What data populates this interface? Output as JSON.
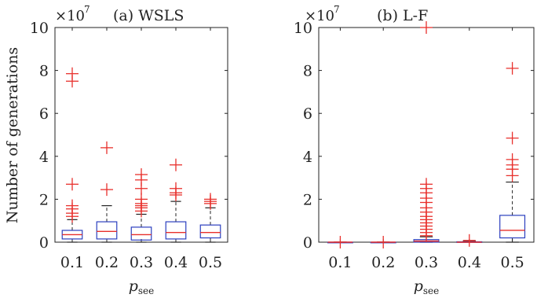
{
  "figure": {
    "ylabel": "Number of generations",
    "xlabel_main": "p",
    "xlabel_sub": "see",
    "multiplier_base": "×10",
    "multiplier_exp": "7"
  },
  "chart_data": [
    {
      "type": "box",
      "title": "(a) WSLS",
      "categories": [
        "0.1",
        "0.2",
        "0.3",
        "0.4",
        "0.5"
      ],
      "ylim": [
        0,
        10
      ],
      "yticks": [
        "0",
        "2",
        "4",
        "6",
        "8",
        "10"
      ],
      "y_unit_multiplier": 10000000,
      "box_color": "#2b3fbf",
      "median_color": "#e8302c",
      "outlier_color": "#e8302c",
      "boxes": [
        {
          "whisker_low": 0,
          "q1": 0.15,
          "median": 0.35,
          "q3": 0.55,
          "whisker_high": 1.05,
          "outliers": [
            1.2,
            1.35,
            1.55,
            1.7,
            2.7,
            7.5,
            7.85
          ]
        },
        {
          "whisker_low": 0,
          "q1": 0.15,
          "median": 0.5,
          "q3": 0.95,
          "whisker_high": 1.7,
          "outliers": [
            2.45,
            4.4
          ]
        },
        {
          "whisker_low": 0,
          "q1": 0.1,
          "median": 0.35,
          "q3": 0.7,
          "whisker_high": 1.3,
          "outliers": [
            1.45,
            1.6,
            1.7,
            1.8,
            2.0,
            2.5,
            2.9,
            3.15
          ]
        },
        {
          "whisker_low": 0,
          "q1": 0.15,
          "median": 0.45,
          "q3": 0.95,
          "whisker_high": 1.9,
          "outliers": [
            2.2,
            2.3,
            2.5,
            3.6
          ]
        },
        {
          "whisker_low": 0,
          "q1": 0.2,
          "median": 0.45,
          "q3": 0.8,
          "whisker_high": 1.6,
          "outliers": [
            1.8,
            1.9,
            2.0
          ]
        }
      ]
    },
    {
      "type": "box",
      "title": "(b) L-F",
      "categories": [
        "0.1",
        "0.2",
        "0.3",
        "0.4",
        "0.5"
      ],
      "ylim": [
        0,
        10
      ],
      "yticks": [
        "0",
        "2",
        "4",
        "6",
        "8",
        "10"
      ],
      "y_unit_multiplier": 10000000,
      "box_color": "#2b3fbf",
      "median_color": "#e8302c",
      "outlier_color": "#e8302c",
      "boxes": [
        {
          "whisker_low": 0,
          "q1": 0,
          "median": 0,
          "q3": 0,
          "whisker_high": 0,
          "outliers": [
            0
          ]
        },
        {
          "whisker_low": 0,
          "q1": 0,
          "median": 0,
          "q3": 0,
          "whisker_high": 0,
          "outliers": [
            0
          ]
        },
        {
          "whisker_low": 0,
          "q1": 0,
          "median": 0.05,
          "q3": 0.12,
          "whisker_high": 0.25,
          "outliers": [
            0.3,
            0.45,
            0.6,
            0.75,
            0.9,
            1.05,
            1.2,
            1.4,
            1.6,
            1.85,
            2.05,
            2.3,
            2.5,
            2.7,
            10
          ]
        },
        {
          "whisker_low": 0,
          "q1": 0,
          "median": 0,
          "q3": 0.02,
          "whisker_high": 0.05,
          "outliers": [
            0.08
          ]
        },
        {
          "whisker_low": 0,
          "q1": 0.2,
          "median": 0.55,
          "q3": 1.25,
          "whisker_high": 2.8,
          "outliers": [
            3.1,
            3.4,
            3.6,
            3.85,
            4.85,
            8.1
          ]
        }
      ]
    }
  ]
}
